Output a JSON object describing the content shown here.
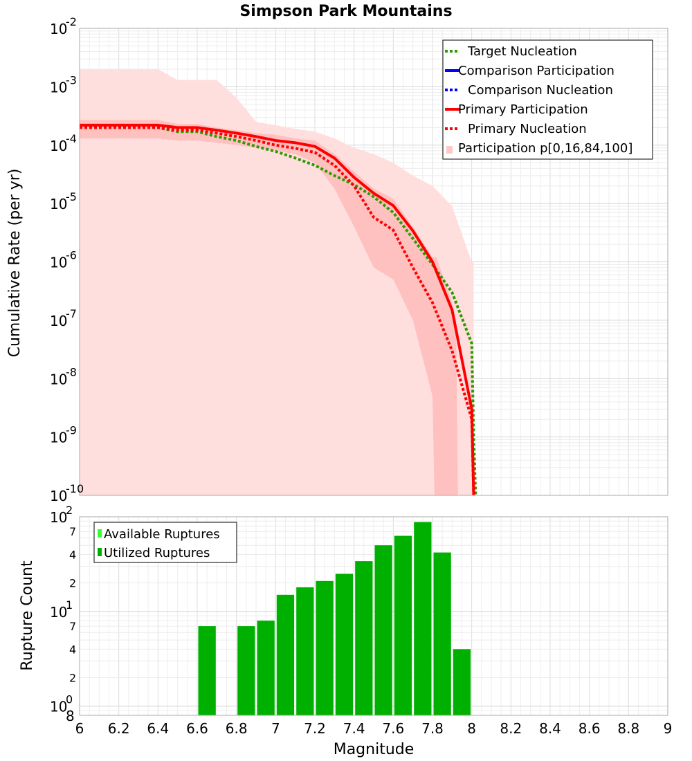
{
  "chart_data": [
    {
      "type": "line",
      "title": "Simpson Park Mountains",
      "ylabel": "Cumulative Rate (per yr)",
      "xlabel": "",
      "xlim": [
        6,
        9
      ],
      "ylim": [
        1e-10,
        0.01
      ],
      "yscale": "log",
      "y_tick_bases": [
        "10",
        "10",
        "10",
        "10",
        "10",
        "10",
        "10",
        "10",
        "10"
      ],
      "y_tick_exponents": [
        "-10",
        "-9",
        "-8",
        "-7",
        "-6",
        "-5",
        "-4",
        "-3",
        "-2"
      ],
      "legend": {
        "position": "top-right",
        "entries": [
          {
            "label": "Target Nucleation",
            "color": "#2e9a00",
            "style": "dotted"
          },
          {
            "label": "Comparison Participation",
            "color": "#0000ff",
            "style": "solid"
          },
          {
            "label": "Comparison Nucleation",
            "color": "#0000ff",
            "style": "dotted"
          },
          {
            "label": "Primary Participation",
            "color": "#ff0000",
            "style": "solid"
          },
          {
            "label": "Primary Nucleation",
            "color": "#ff0000",
            "style": "dotted"
          },
          {
            "label": "Participation p[0,16,84,100]",
            "color": "#ffc8c8",
            "style": "band"
          }
        ]
      },
      "bands": [
        {
          "name": "p0-p100",
          "x": [
            6.0,
            6.4,
            6.5,
            6.6,
            6.7,
            6.8,
            6.9,
            7.0,
            7.1,
            7.2,
            7.3,
            7.4,
            7.5,
            7.6,
            7.7,
            7.8,
            7.9,
            8.0,
            8.01
          ],
          "upper": [
            0.002,
            0.002,
            0.0013,
            0.0013,
            0.0013,
            0.00065,
            0.00025,
            0.00022,
            0.00019,
            0.00017,
            0.00013,
            9e-05,
            7e-05,
            5e-05,
            3e-05,
            2e-05,
            9e-06,
            1e-06,
            1e-06
          ],
          "lower": [
            1e-10,
            1e-10,
            1e-10,
            1e-10,
            1e-10,
            1e-10,
            1e-10,
            1e-10,
            1e-10,
            1e-10,
            1e-10,
            1e-10,
            1e-10,
            1e-10,
            1e-10,
            1e-10,
            1e-10,
            1e-10,
            1e-10
          ],
          "color": "#ffdede"
        },
        {
          "name": "p16-p84",
          "x": [
            6.0,
            6.4,
            6.5,
            6.6,
            6.7,
            6.8,
            6.9,
            7.0,
            7.1,
            7.2,
            7.3,
            7.4,
            7.5,
            7.6,
            7.7,
            7.8,
            7.81,
            7.82,
            7.9,
            7.92,
            7.93
          ],
          "upper": [
            0.00027,
            0.00027,
            0.00023,
            0.00023,
            0.0002,
            0.00018,
            0.00016,
            0.00015,
            0.00013,
            0.00012,
            7e-05,
            3.5e-05,
            1.8e-05,
            1.2e-05,
            4e-06,
            1.2e-06,
            1.2e-06,
            1.2e-06,
            2e-07,
            1e-07,
            1e-10
          ],
          "lower": [
            0.00013,
            0.00013,
            0.00012,
            0.00012,
            0.00011,
            0.0001,
            9e-05,
            8e-05,
            7e-05,
            5e-05,
            1.8e-05,
            4e-06,
            8e-07,
            5e-07,
            1e-07,
            5e-09,
            1e-10,
            1e-10,
            1e-10,
            1e-10,
            1e-10
          ],
          "color": "#ffc0c0"
        }
      ],
      "series": [
        {
          "name": "Target Nucleation",
          "color": "#2e9a00",
          "dash": "dotted",
          "x": [
            6.0,
            6.4,
            6.5,
            6.6,
            6.7,
            6.8,
            6.9,
            7.0,
            7.1,
            7.2,
            7.3,
            7.4,
            7.5,
            7.6,
            7.7,
            7.8,
            7.9,
            8.0,
            8.01,
            8.02
          ],
          "y": [
            0.0002,
            0.0002,
            0.00017,
            0.00017,
            0.00014,
            0.00012,
            9.5e-05,
            7.8e-05,
            6e-05,
            4.5e-05,
            3e-05,
            2.1e-05,
            1.3e-05,
            7e-06,
            2.5e-06,
            9e-07,
            3e-07,
            4e-08,
            1e-09,
            1e-10
          ]
        },
        {
          "name": "Primary Participation",
          "color": "#ff0000",
          "dash": "solid",
          "x": [
            6.0,
            6.4,
            6.5,
            6.6,
            6.7,
            6.8,
            6.9,
            7.0,
            7.1,
            7.2,
            7.3,
            7.4,
            7.5,
            7.6,
            7.7,
            7.8,
            7.9,
            8.0,
            8.01
          ],
          "y": [
            0.00022,
            0.00022,
            0.0002,
            0.0002,
            0.00018,
            0.00016,
            0.00014,
            0.00012,
            0.00011,
            9.5e-05,
            6e-05,
            2.8e-05,
            1.5e-05,
            9.2e-06,
            3.4e-06,
            1e-06,
            1.5e-07,
            3e-09,
            1e-10
          ]
        },
        {
          "name": "Primary Nucleation",
          "color": "#ff0000",
          "dash": "dotted",
          "x": [
            6.0,
            6.4,
            6.5,
            6.6,
            6.7,
            6.8,
            6.9,
            7.0,
            7.1,
            7.2,
            7.3,
            7.4,
            7.5,
            7.6,
            7.7,
            7.8,
            7.9,
            8.0,
            8.01
          ],
          "y": [
            0.0002,
            0.0002,
            0.00018,
            0.00018,
            0.00016,
            0.00014,
            0.00012,
            0.0001,
            8.8e-05,
            7.5e-05,
            4.5e-05,
            2e-05,
            5.8e-06,
            3.5e-06,
            8e-07,
            2e-07,
            3e-08,
            2e-09,
            1e-10
          ]
        }
      ]
    },
    {
      "type": "bar",
      "ylabel": "Rupture Count",
      "xlabel": "Magnitude",
      "xlim": [
        6,
        9
      ],
      "yscale": "log",
      "ylim": [
        0.8,
        100
      ],
      "x_ticks": [
        "6",
        "6.2",
        "6.4",
        "6.6",
        "6.8",
        "7",
        "7.2",
        "7.4",
        "7.6",
        "7.8",
        "8",
        "8.2",
        "8.4",
        "8.6",
        "8.8",
        "9"
      ],
      "y_tick_bases": [
        "10",
        "10",
        "10"
      ],
      "y_tick_exponents": [
        "0",
        "1",
        "2"
      ],
      "y_minor_labels": [
        "8",
        "2",
        "4",
        "7",
        "2",
        "4",
        "7"
      ],
      "legend": {
        "position": "top-left",
        "entries": [
          {
            "label": "Available Ruptures",
            "color": "#33ff33"
          },
          {
            "label": "Utilized Ruptures",
            "color": "#00b000"
          }
        ]
      },
      "series": [
        {
          "name": "Utilized Ruptures",
          "color": "#00b000",
          "x": [
            6.65,
            6.85,
            6.95,
            7.05,
            7.15,
            7.25,
            7.35,
            7.45,
            7.55,
            7.65,
            7.75,
            7.85,
            7.95
          ],
          "values": [
            7,
            7,
            8,
            15,
            18,
            21,
            25,
            34,
            50,
            63,
            88,
            42,
            4
          ]
        }
      ]
    }
  ]
}
